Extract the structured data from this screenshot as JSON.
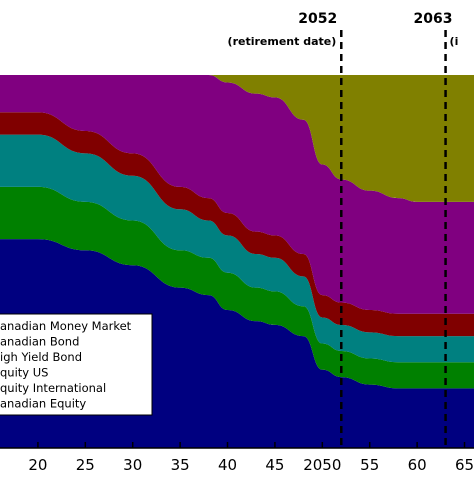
{
  "chart_data": {
    "type": "area",
    "title": "",
    "xlabel": "",
    "ylabel": "",
    "stacked": true,
    "xlim": [
      2016,
      2066
    ],
    "ylim": [
      0,
      1
    ],
    "x_tick_labels": [
      {
        "x": 2020,
        "label": "20"
      },
      {
        "x": 2025,
        "label": "25"
      },
      {
        "x": 2030,
        "label": "30"
      },
      {
        "x": 2035,
        "label": "35"
      },
      {
        "x": 2040,
        "label": "40"
      },
      {
        "x": 2045,
        "label": "45"
      },
      {
        "x": 2050,
        "label": "2050"
      },
      {
        "x": 2055,
        "label": "55"
      },
      {
        "x": 2060,
        "label": "60"
      },
      {
        "x": 2065,
        "label": "65"
      }
    ],
    "x": [
      2016,
      2020,
      2025,
      2030,
      2035,
      2038,
      2040,
      2043,
      2045,
      2048,
      2050,
      2052,
      2055,
      2058,
      2060,
      2063,
      2066
    ],
    "series": [
      {
        "name": "Canadian Equity",
        "color": "#000080",
        "values": [
          0.56,
          0.56,
          0.53,
          0.49,
          0.43,
          0.41,
          0.37,
          0.34,
          0.33,
          0.3,
          0.21,
          0.19,
          0.17,
          0.16,
          0.16,
          0.16,
          0.16
        ]
      },
      {
        "name": "Equity International",
        "color": "#008000",
        "values": [
          0.14,
          0.14,
          0.13,
          0.12,
          0.1,
          0.1,
          0.1,
          0.09,
          0.09,
          0.08,
          0.07,
          0.07,
          0.07,
          0.07,
          0.07,
          0.07,
          0.07
        ]
      },
      {
        "name": "Equity US",
        "color": "#008080",
        "values": [
          0.14,
          0.14,
          0.13,
          0.12,
          0.11,
          0.1,
          0.1,
          0.09,
          0.09,
          0.08,
          0.07,
          0.07,
          0.07,
          0.07,
          0.07,
          0.07,
          0.07
        ]
      },
      {
        "name": "High Yield Bond",
        "color": "#800000",
        "values": [
          0.06,
          0.06,
          0.06,
          0.06,
          0.06,
          0.06,
          0.06,
          0.06,
          0.06,
          0.06,
          0.06,
          0.06,
          0.06,
          0.06,
          0.06,
          0.06,
          0.06
        ]
      },
      {
        "name": "Canadian Bond",
        "color": "#800080",
        "values": [
          0.1,
          0.1,
          0.15,
          0.21,
          0.3,
          0.33,
          0.35,
          0.37,
          0.37,
          0.36,
          0.35,
          0.33,
          0.32,
          0.31,
          0.3,
          0.3,
          0.3
        ]
      },
      {
        "name": "Canadian Money Market",
        "color": "#808000",
        "values": [
          0.0,
          0.0,
          0.0,
          0.0,
          0.0,
          0.0,
          0.02,
          0.05,
          0.06,
          0.12,
          0.24,
          0.28,
          0.31,
          0.33,
          0.34,
          0.34,
          0.34
        ]
      }
    ],
    "markers": [
      {
        "x": 2052,
        "year": "2052",
        "note": "(retirement date)"
      },
      {
        "x": 2063,
        "year": "2063",
        "note": "(i"
      }
    ],
    "legend": {
      "placement": "bottom-left",
      "entries": [
        "Canadian Money Market",
        "Canadian Bond",
        "High Yield Bond",
        "Equity US",
        "Equity International",
        "Canadian Equity"
      ],
      "visible_labels": [
        "anadian Money Market",
        "anadian Bond",
        "igh Yield Bond",
        "quity US",
        "quity International",
        "anadian Equity"
      ]
    },
    "grid": false
  }
}
